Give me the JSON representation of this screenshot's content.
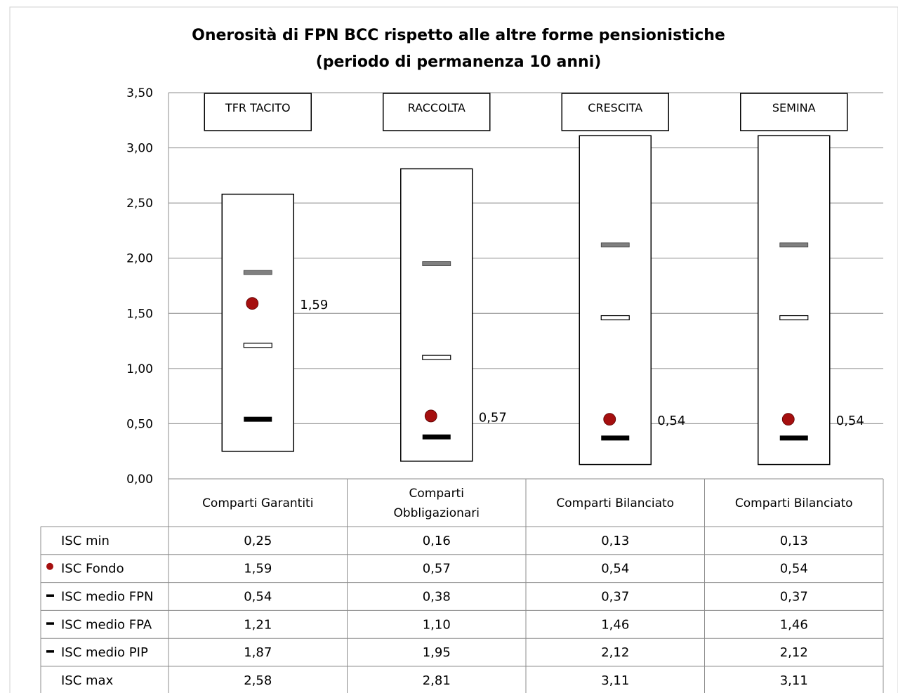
{
  "chart_data": {
    "type": "table",
    "title": "Onerosità di FPN BCC rispetto alle altre forme pensionistiche",
    "subtitle": "(periodo di permanenza 10 anni)",
    "ylim": [
      0,
      3.5
    ],
    "yticks": [
      0,
      0.5,
      1,
      1.5,
      2,
      2.5,
      3,
      3.5
    ],
    "ytick_labels": [
      "0,00",
      "0,50",
      "1,00",
      "1,50",
      "2,00",
      "2,50",
      "3,00",
      "3,50"
    ],
    "grid": true,
    "categories": [
      "Comparti Garantiti",
      "Comparti Obbligazionari",
      "Comparti Bilanciato",
      "Comparti Bilanciato"
    ],
    "category_lines": [
      [
        "Comparti Garantiti"
      ],
      [
        "Comparti",
        "Obbligazionari"
      ],
      [
        "Comparti Bilanciato"
      ],
      [
        "Comparti Bilanciato"
      ]
    ],
    "box_labels": [
      "TFR TACITO",
      "RACCOLTA",
      "CRESCITA",
      "SEMINA"
    ],
    "fondo_labels": [
      "1,59",
      "0,57",
      "0,54",
      "0,54"
    ],
    "series": [
      {
        "name": "ISC min",
        "marker": "none",
        "values": [
          0.25,
          0.16,
          0.13,
          0.13
        ],
        "labels": [
          "0,25",
          "0,16",
          "0,13",
          "0,13"
        ]
      },
      {
        "name": "ISC Fondo",
        "marker": "dot",
        "color": "#a50f0f",
        "values": [
          1.59,
          0.57,
          0.54,
          0.54
        ],
        "labels": [
          "1,59",
          "0,57",
          "0,54",
          "0,54"
        ]
      },
      {
        "name": "ISC medio FPN",
        "marker": "dash-black",
        "color": "#000000",
        "values": [
          0.54,
          0.38,
          0.37,
          0.37
        ],
        "labels": [
          "0,54",
          "0,38",
          "0,37",
          "0,37"
        ]
      },
      {
        "name": "ISC medio FPA",
        "marker": "dash-white",
        "color": "#ffffff",
        "values": [
          1.21,
          1.1,
          1.46,
          1.46
        ],
        "labels": [
          "1,21",
          "1,10",
          "1,46",
          "1,46"
        ]
      },
      {
        "name": "ISC medio PIP",
        "marker": "dash-gray",
        "color": "#808080",
        "values": [
          1.87,
          1.95,
          2.12,
          2.12
        ],
        "labels": [
          "1,87",
          "1,95",
          "2,12",
          "2,12"
        ]
      },
      {
        "name": "ISC max",
        "marker": "none",
        "values": [
          2.58,
          2.81,
          3.11,
          3.11
        ],
        "labels": [
          "2,58",
          "2,81",
          "3,11",
          "3,11"
        ]
      }
    ]
  }
}
